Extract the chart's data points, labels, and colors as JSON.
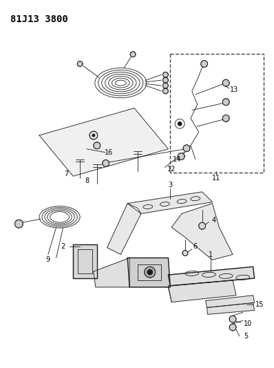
{
  "title": "81J13 3800",
  "bg_color": "#ffffff",
  "line_color": "#1a1a1a",
  "label_color": "#000000",
  "title_fontsize": 10,
  "label_fontsize": 7,
  "fig_width": 3.98,
  "fig_height": 5.33,
  "dpi": 100
}
